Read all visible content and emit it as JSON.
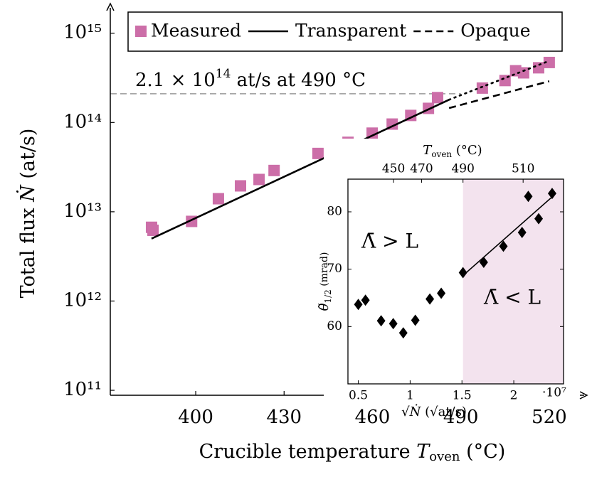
{
  "chart_data": [
    {
      "type": "scatter",
      "xlabel_parts": [
        "Crucible temperature ",
        "T",
        "oven",
        " (°C)"
      ],
      "ylabel_parts": [
        "Total flux ",
        "Ṅ",
        " (at/s)"
      ],
      "xlim": [
        371,
        528
      ],
      "xticks": [
        400,
        430,
        460,
        490,
        520
      ],
      "ylim": [
        88000000000.0,
        2150000000000000.0
      ],
      "log_y": true,
      "yticks": [
        {
          "value": 100000000000.0,
          "label": "10¹¹"
        },
        {
          "value": 1000000000000.0,
          "label": "10¹²"
        },
        {
          "value": 10000000000000.0,
          "label": "10¹³"
        },
        {
          "value": 100000000000000.0,
          "label": "10¹⁴"
        },
        {
          "value": 1000000000000000.0,
          "label": "10¹⁵"
        }
      ],
      "legend": "top",
      "series": [
        {
          "name": "Measured",
          "color": "#cc6ea8",
          "marker": "square",
          "x": [
            385,
            385.5,
            398.6,
            407.7,
            415.2,
            421.5,
            426.6,
            441.5,
            451.7,
            459.9,
            466.7,
            473,
            479,
            482.1,
            497.3,
            505,
            508.6,
            511.3,
            516.4,
            520
          ],
          "values": [
            6700000000000.0,
            6200000000000.0,
            7800000000000.0,
            14000000000000.0,
            19500000000000.0,
            23000000000000.0,
            29000000000000.0,
            45000000000000.0,
            60000000000000.0,
            76000000000000.0,
            96000000000000.0,
            120000000000000.0,
            144000000000000.0,
            190000000000000.0,
            243000000000000.0,
            295000000000000.0,
            380000000000000.0,
            360000000000000.0,
            410000000000000.0,
            470000000000000.0
          ]
        },
        {
          "name": "Transparent",
          "color": "#000000",
          "style": "solid",
          "x": [
            385,
            486
          ],
          "values": [
            5000000000000.0,
            180000000000000.0
          ]
        },
        {
          "name": "Opaque",
          "color": "#000000",
          "style": "dashed",
          "x": [
            486,
            520
          ],
          "values": [
            145000000000000.0,
            290000000000000.0
          ]
        },
        {
          "color": "#000000",
          "style": "dotted",
          "x": [
            486,
            520
          ],
          "values": [
            180000000000000.0,
            490000000000000.0
          ]
        }
      ],
      "reference": {
        "value": 210000000000000.0,
        "x": 490,
        "color": "#999999",
        "label_parts": [
          "2.1 × 10",
          "14",
          " at/s at 490 °C"
        ]
      }
    },
    {
      "type": "scatter",
      "marker": "diamond",
      "color": "#000000",
      "x": [
        0.5,
        0.569,
        0.72,
        0.837,
        0.934,
        1.05,
        1.19,
        1.3,
        1.51,
        1.71,
        1.9,
        2.08,
        2.14,
        2.24,
        2.37
      ],
      "values": [
        63.85,
        64.6,
        61.0,
        60.5,
        58.9,
        61.1,
        64.8,
        65.8,
        69.4,
        71.2,
        74.0,
        76.4,
        82.7,
        78.8,
        83.2
      ],
      "xlim": [
        0.4,
        2.48
      ],
      "xticks": [
        0.5,
        1,
        1.5,
        2
      ],
      "x_multiplier": "·10⁷",
      "ylim": [
        50,
        85.7
      ],
      "yticks": [
        60,
        70,
        80
      ],
      "x2ticks": [
        {
          "value": 0.84,
          "label": "450"
        },
        {
          "value": 1.11,
          "label": "470"
        },
        {
          "value": 1.51,
          "label": "490"
        },
        {
          "value": 2.09,
          "label": "510"
        }
      ],
      "x2label_parts": [
        "T",
        "oven",
        " (°C)"
      ],
      "xlabel_parts": [
        "√",
        "Ṅ",
        " (√at/s)"
      ],
      "ylabel_parts": [
        "θ̃",
        "1/2",
        " (mrad)"
      ],
      "fit": {
        "x": [
          1.51,
          2.37
        ],
        "values": [
          68.9,
          82.6
        ]
      },
      "shaded": {
        "x_start": 1.51,
        "color": "#f3e3ee"
      },
      "annotations": [
        "Λ̄ > L",
        "Λ̄ < L"
      ]
    }
  ]
}
